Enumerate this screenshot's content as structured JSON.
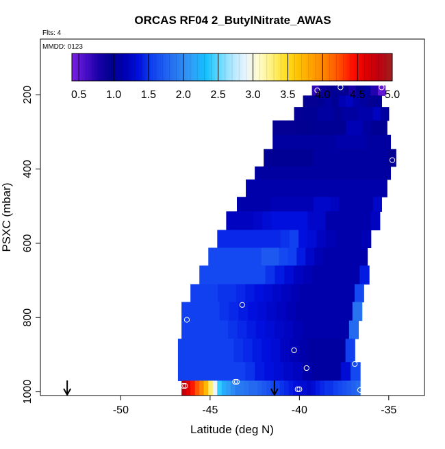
{
  "chart_data": {
    "type": "heatmap",
    "title": "ORCAS RF04 2_ButylNitrate_AWAS",
    "flights_label": "Flts: 4",
    "date_label": "MMDD: 0123",
    "xlabel": "Latitude (deg N)",
    "ylabel": "PSXC (mbar)",
    "xlim": [
      -54.5,
      -33
    ],
    "ylim": [
      1010,
      50
    ],
    "y_reversed": true,
    "x_ticks": [
      -50,
      -45,
      -40,
      -35
    ],
    "x_tick_labels": [
      "-50",
      "-45",
      "-40",
      "-35"
    ],
    "y_ticks": [
      200,
      400,
      600,
      800,
      1000
    ],
    "y_tick_labels": [
      "200",
      "400",
      "600",
      "800",
      "1000"
    ],
    "grid": false,
    "colorbar": {
      "range": [
        0.4,
        5.0
      ],
      "tick_values": [
        0.5,
        1.0,
        1.5,
        2.0,
        2.5,
        3.0,
        3.5,
        4.0,
        4.5,
        5.0
      ],
      "tick_labels": [
        "0.5",
        "1.0",
        "1.5",
        "2.0",
        "2.5",
        "3.0",
        "3.5",
        "4.0",
        "4.5",
        "5.0"
      ],
      "colors": [
        "#7a1fe0",
        "#4a10c8",
        "#1a00a8",
        "#000090",
        "#0000b8",
        "#0010e0",
        "#1040f0",
        "#2060f0",
        "#2a80f0",
        "#30a0f8",
        "#10c0ff",
        "#60d8ff",
        "#b0e8ff",
        "#e8f4ff",
        "#fffccc",
        "#fff07a",
        "#ffe020",
        "#ffc000",
        "#ffa000",
        "#ff8000",
        "#ff5000",
        "#ff1000",
        "#e00000",
        "#c00010",
        "#a02020"
      ]
    },
    "bands": [
      {
        "p_top": 175,
        "p_bot": 202,
        "x_start": -39.3,
        "x_end": -35.2,
        "values": [
          0.7,
          0.9,
          0.95,
          1.0,
          0.95,
          0.8,
          0.95,
          1.05,
          0.75,
          0.5
        ]
      },
      {
        "p_top": 202,
        "p_bot": 233,
        "x_start": -39.8,
        "x_end": -35.4,
        "values": [
          0.95,
          0.95,
          1.0,
          1.05,
          1.0,
          1.15,
          1.2,
          1.1,
          1.05,
          0.95,
          1.0
        ]
      },
      {
        "p_top": 233,
        "p_bot": 269,
        "x_start": -40.3,
        "x_end": -35.0,
        "values": [
          0.95,
          1.0,
          1.0,
          1.05,
          1.05,
          1.0,
          1.05,
          1.05,
          1.1,
          1.1,
          1.2,
          1.05
        ]
      },
      {
        "p_top": 269,
        "p_bot": 308,
        "x_start": -41.5,
        "x_end": -35.1,
        "values": [
          0.95,
          0.95,
          0.95,
          0.98,
          0.98,
          1.0,
          1.0,
          1.0,
          1.0,
          1.15,
          1.15,
          1.05,
          1.0,
          1.0
        ]
      },
      {
        "p_top": 308,
        "p_bot": 346,
        "x_start": -41.5,
        "x_end": -34.9,
        "values": [
          1.05,
          1.05,
          1.05,
          1.05,
          1.05,
          1.05,
          1.05,
          1.05,
          1.1,
          1.1,
          1.1,
          1.1,
          1.05,
          1.05,
          1.05
        ]
      },
      {
        "p_top": 346,
        "p_bot": 393,
        "x_start": -42.0,
        "x_end": -34.6,
        "values": [
          1.0,
          1.0,
          1.0,
          1.0,
          1.0,
          1.0,
          1.05,
          1.05,
          1.05,
          1.05,
          1.05,
          1.05,
          1.05,
          1.05,
          1.05,
          0.95
        ]
      },
      {
        "p_top": 393,
        "p_bot": 428,
        "x_start": -42.5,
        "x_end": -34.9,
        "values": [
          1.05,
          1.05,
          1.05,
          1.05,
          1.05,
          1.05,
          1.05,
          1.05,
          1.05,
          1.05,
          1.05,
          1.05,
          1.05,
          1.05,
          1.05,
          1.05
        ]
      },
      {
        "p_top": 428,
        "p_bot": 475,
        "x_start": -43.0,
        "x_end": -35.1,
        "values": [
          1.1,
          1.1,
          1.1,
          1.1,
          1.1,
          1.1,
          1.1,
          1.1,
          1.1,
          1.1,
          1.1,
          1.1,
          1.1,
          1.1,
          1.1,
          1.1
        ]
      },
      {
        "p_top": 475,
        "p_bot": 514,
        "x_start": -43.5,
        "x_end": -35.4,
        "values": [
          1.1,
          1.1,
          1.1,
          1.1,
          1.15,
          1.15,
          1.15,
          1.15,
          1.15,
          1.25,
          1.25,
          1.2,
          1.1,
          1.1,
          1.1,
          1.1,
          1.25
        ]
      },
      {
        "p_top": 514,
        "p_bot": 564,
        "x_start": -44.1,
        "x_end": -35.5,
        "values": [
          1.2,
          1.2,
          1.2,
          1.25,
          1.3,
          1.35,
          1.35,
          1.35,
          1.35,
          1.25,
          1.25,
          1.1,
          1.1,
          1.1,
          1.1,
          1.1,
          1.2
        ]
      },
      {
        "p_top": 564,
        "p_bot": 612,
        "x_start": -44.6,
        "x_end": -36.0,
        "values": [
          1.45,
          1.45,
          1.45,
          1.45,
          1.45,
          1.45,
          1.45,
          1.5,
          1.55,
          1.35,
          1.3,
          1.2,
          1.15,
          1.1,
          1.1,
          1.1,
          1.15
        ]
      },
      {
        "p_top": 612,
        "p_bot": 660,
        "x_start": -45.1,
        "x_end": -36.2,
        "values": [
          1.6,
          1.6,
          1.6,
          1.6,
          1.6,
          1.6,
          1.7,
          1.7,
          1.6,
          1.55,
          1.4,
          1.25,
          1.15,
          1.1,
          1.1,
          1.1,
          1.1,
          1.1
        ]
      },
      {
        "p_top": 660,
        "p_bot": 710,
        "x_start": -45.6,
        "x_end": -36.1,
        "values": [
          1.6,
          1.6,
          1.6,
          1.6,
          1.6,
          1.6,
          1.6,
          1.5,
          1.4,
          1.3,
          1.2,
          1.15,
          1.1,
          1.1,
          1.1,
          1.1,
          1.1,
          1.4
        ]
      },
      {
        "p_top": 710,
        "p_bot": 758,
        "x_start": -46.1,
        "x_end": -36.4,
        "values": [
          1.55,
          1.55,
          1.55,
          1.5,
          1.5,
          1.45,
          1.4,
          1.35,
          1.3,
          1.25,
          1.2,
          1.15,
          1.1,
          1.1,
          1.1,
          1.1,
          1.1,
          1.1,
          1.6
        ]
      },
      {
        "p_top": 758,
        "p_bot": 808,
        "x_start": -46.6,
        "x_end": -36.5,
        "values": [
          1.55,
          1.55,
          1.55,
          1.55,
          1.5,
          1.45,
          1.4,
          1.35,
          1.3,
          1.25,
          1.2,
          1.15,
          1.1,
          1.1,
          1.1,
          1.1,
          1.1,
          1.1,
          1.85
        ]
      },
      {
        "p_top": 808,
        "p_bot": 857,
        "x_start": -46.6,
        "x_end": -36.7,
        "values": [
          1.55,
          1.55,
          1.55,
          1.55,
          1.55,
          1.5,
          1.45,
          1.4,
          1.35,
          1.3,
          1.25,
          1.2,
          1.15,
          1.1,
          1.1,
          1.1,
          1.1,
          1.1,
          1.8
        ]
      },
      {
        "p_top": 857,
        "p_bot": 920,
        "x_start": -46.8,
        "x_end": -36.9,
        "values": [
          1.55,
          1.55,
          1.55,
          1.55,
          1.55,
          1.55,
          1.5,
          1.45,
          1.4,
          1.35,
          1.3,
          1.2,
          1.15,
          1.1,
          1.05,
          1.05,
          1.05,
          1.05,
          1.55
        ]
      },
      {
        "p_top": 920,
        "p_bot": 970,
        "x_start": -46.8,
        "x_end": -36.6,
        "values": [
          1.55,
          1.55,
          1.55,
          1.55,
          1.55,
          1.55,
          1.55,
          1.5,
          1.4,
          1.35,
          1.3,
          1.25,
          1.2,
          1.1,
          1.05,
          1.05,
          1.05,
          1.3,
          1.6
        ]
      },
      {
        "p_top": 970,
        "p_bot": 1010,
        "x_start": -46.6,
        "x_end": -36.6,
        "values": [
          4.8,
          4.6,
          4.4,
          4.2,
          4.0,
          3.7,
          3.3,
          2.9,
          2.4,
          2.2,
          2.1,
          2.0,
          1.9,
          1.9,
          1.85,
          1.8,
          1.8,
          1.75,
          1.7,
          1.65,
          1.6,
          1.55,
          1.5,
          1.45,
          1.4,
          1.35,
          1.3,
          1.3,
          1.25,
          1.3,
          1.4,
          1.45,
          1.5,
          1.5,
          1.55,
          1.6,
          1.65,
          1.7,
          1.75,
          1.8
        ]
      }
    ],
    "markers": [
      {
        "lat": -39.0,
        "p": 188
      },
      {
        "lat": -37.7,
        "p": 180
      },
      {
        "lat": -35.4,
        "p": 180
      },
      {
        "lat": -34.8,
        "p": 376
      },
      {
        "lat": -43.2,
        "p": 766
      },
      {
        "lat": -46.3,
        "p": 806
      },
      {
        "lat": -40.3,
        "p": 888
      },
      {
        "lat": -39.6,
        "p": 936
      },
      {
        "lat": -36.9,
        "p": 925
      },
      {
        "lat": -43.5,
        "p": 973
      },
      {
        "lat": -43.6,
        "p": 973
      },
      {
        "lat": -46.4,
        "p": 984
      },
      {
        "lat": -46.5,
        "p": 984
      },
      {
        "lat": -40.0,
        "p": 993
      },
      {
        "lat": -40.1,
        "p": 993
      },
      {
        "lat": -36.6,
        "p": 995
      }
    ],
    "arrows": [
      {
        "lat": -53.0
      },
      {
        "lat": -41.4
      }
    ]
  }
}
